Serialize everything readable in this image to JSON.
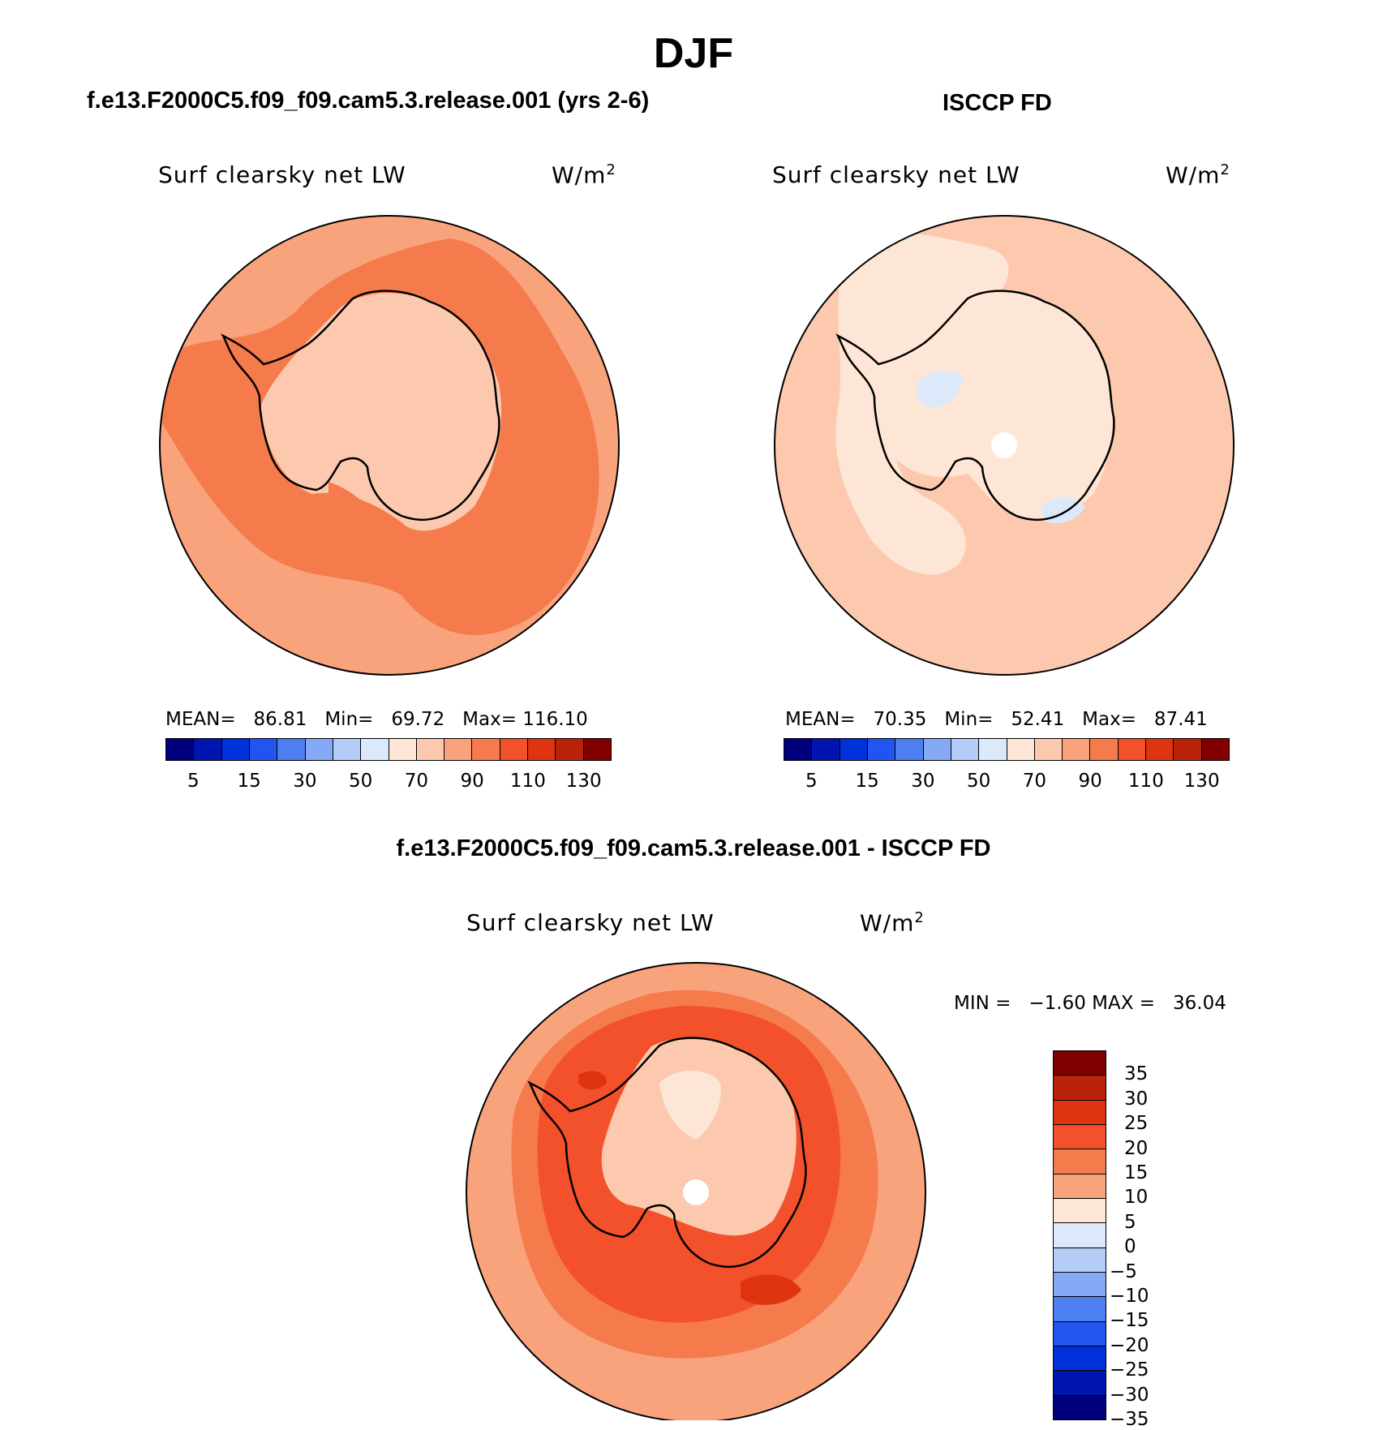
{
  "title": "DJF",
  "panels": {
    "model": {
      "case_title": "f.e13.F2000C5.f09_f09.cam5.3.release.001 (yrs 2-6)",
      "variable": "Surf clearsky net LW",
      "units_base": "W/m",
      "units_exp": "2",
      "stats": {
        "mean_label": "MEAN=",
        "mean": "86.81",
        "min_label": "Min=",
        "min": "69.72",
        "max_label": "Max=",
        "max": "116.10"
      }
    },
    "obs": {
      "case_title": "ISCCP FD",
      "variable": "Surf clearsky net LW",
      "units_base": "W/m",
      "units_exp": "2",
      "stats": {
        "mean_label": "MEAN=",
        "mean": "70.35",
        "min_label": "Min=",
        "min": "52.41",
        "max_label": "Max=",
        "max": "87.41"
      }
    },
    "diff": {
      "case_title": "f.e13.F2000C5.f09_f09.cam5.3.release.001 - ISCCP FD",
      "variable": "Surf clearsky net LW",
      "units_base": "W/m",
      "units_exp": "2",
      "minmax": {
        "min_label": "MIN =",
        "min": "−1.60",
        "max_label": "MAX =",
        "max": "36.04"
      }
    }
  },
  "colorbar_abs": {
    "colors": [
      "#00007f",
      "#0015b0",
      "#0032dc",
      "#2255f0",
      "#4d7ff2",
      "#86a9f6",
      "#b4ccf8",
      "#dce9fb",
      "#fde6d5",
      "#fcc9ae",
      "#f9a37d",
      "#f57a4c",
      "#f2512b",
      "#de3510",
      "#b8230a",
      "#800000"
    ],
    "tick_labels": [
      "5",
      "15",
      "30",
      "50",
      "70",
      "90",
      "110",
      "130"
    ]
  },
  "colorbar_diff": {
    "colors": [
      "#800000",
      "#b8230a",
      "#de3510",
      "#f2512b",
      "#f57a4c",
      "#f9a37d",
      "#fde6d5",
      "#dce9fb",
      "#b4ccf8",
      "#86a9f6",
      "#4d7ff2",
      "#2255f0",
      "#0032dc",
      "#0015b0",
      "#00007f"
    ],
    "tick_labels": [
      "35",
      "30",
      "25",
      "20",
      "15",
      "10",
      "5",
      "0",
      "−5",
      "−10",
      "−15",
      "−20",
      "−25",
      "−30",
      "−35"
    ]
  },
  "map_colors": {
    "ocean_model": "#f57a4c",
    "ocean_model_light": "#f9a37d",
    "ice_model": "#fcc9ae",
    "ocean_obs": "#fcc9ae",
    "ice_obs": "#fde6d5",
    "neg_obs": "#dce9fb",
    "diff_outer": "#f9a37d",
    "diff_mid": "#f57a4c",
    "diff_strong": "#f2512b",
    "diff_max": "#de3510",
    "diff_ice": "#fcc9ae",
    "diff_ice_low": "#fde6d5"
  }
}
